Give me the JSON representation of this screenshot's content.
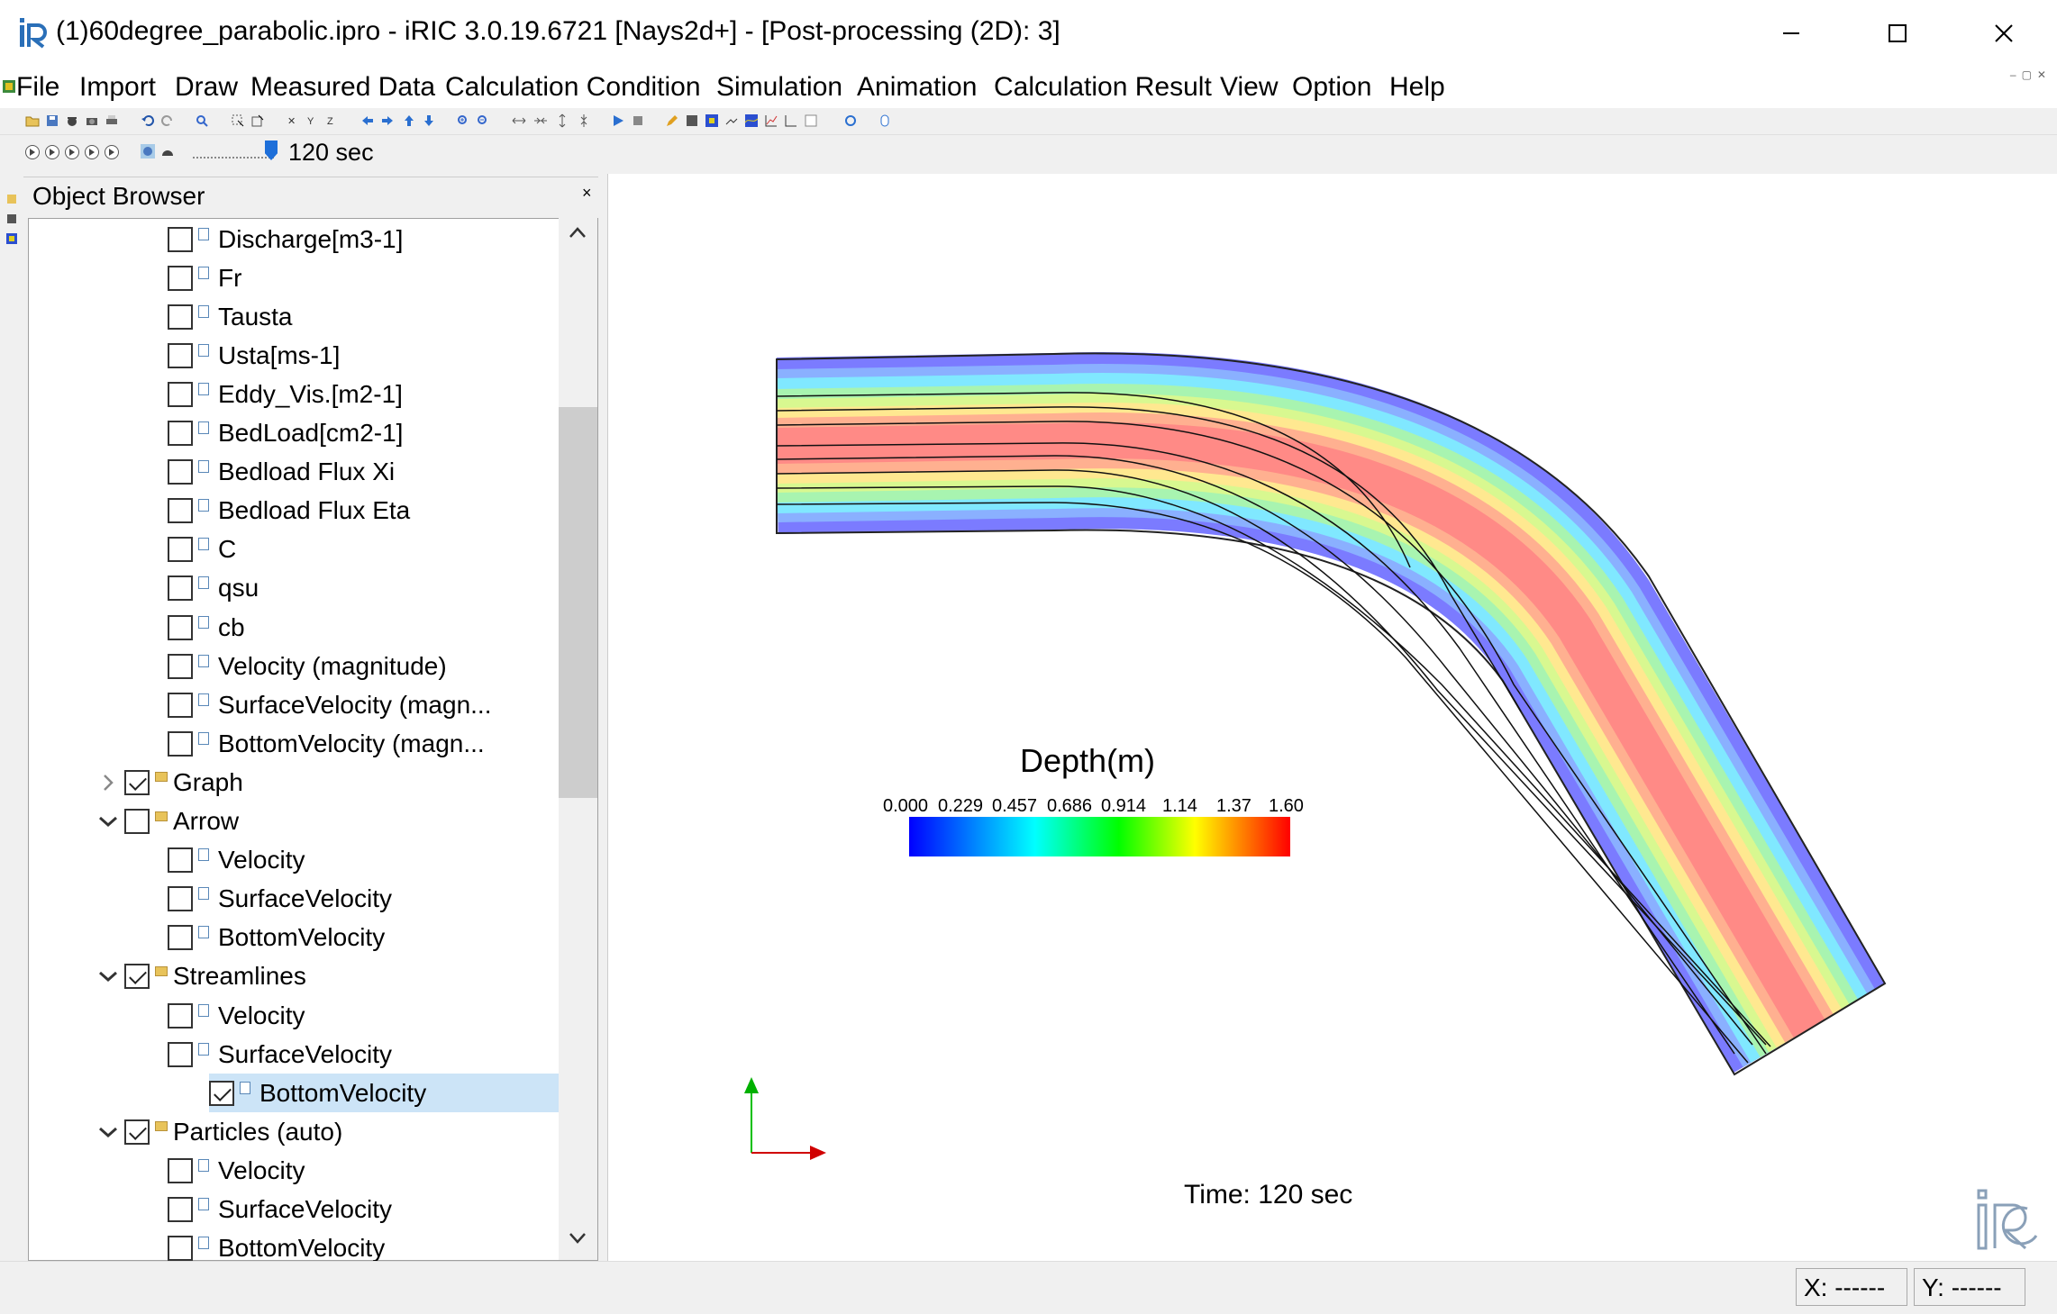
{
  "window": {
    "title": "(1)60degree_parabolic.ipro - iRIC 3.0.19.6721 [Nays2d+] - [Post-processing (2D): 3]",
    "controls": [
      "minimize",
      "maximize",
      "close"
    ]
  },
  "menu": [
    "File",
    "Import",
    "Draw",
    "Measured Data",
    "Calculation Condition",
    "Simulation",
    "Animation",
    "Calculation Result",
    "View",
    "Option",
    "Help"
  ],
  "toolbar": {
    "time_label": "120 sec",
    "slider_fraction": 1.0
  },
  "object_browser": {
    "title": "Object Browser",
    "close_label": "×",
    "items": [
      {
        "label": "Discharge[m3-1]",
        "level": 2,
        "type": "file",
        "checked": false
      },
      {
        "label": "Fr",
        "level": 2,
        "type": "file",
        "checked": false
      },
      {
        "label": "Tausta",
        "level": 2,
        "type": "file",
        "checked": false
      },
      {
        "label": "Usta[ms-1]",
        "level": 2,
        "type": "file",
        "checked": false
      },
      {
        "label": "Eddy_Vis.[m2-1]",
        "level": 2,
        "type": "file",
        "checked": false
      },
      {
        "label": "BedLoad[cm2-1]",
        "level": 2,
        "type": "file",
        "checked": false
      },
      {
        "label": "Bedload Flux Xi",
        "level": 2,
        "type": "file",
        "checked": false
      },
      {
        "label": "Bedload Flux Eta",
        "level": 2,
        "type": "file",
        "checked": false
      },
      {
        "label": "C",
        "level": 2,
        "type": "file",
        "checked": false
      },
      {
        "label": "qsu",
        "level": 2,
        "type": "file",
        "checked": false
      },
      {
        "label": "cb",
        "level": 2,
        "type": "file",
        "checked": false
      },
      {
        "label": "Velocity (magnitude)",
        "level": 2,
        "type": "file",
        "checked": false
      },
      {
        "label": "SurfaceVelocity (magn...",
        "level": 2,
        "type": "file",
        "checked": false
      },
      {
        "label": "BottomVelocity (magn...",
        "level": 2,
        "type": "file",
        "checked": false
      },
      {
        "label": "Graph",
        "level": 1,
        "type": "folder",
        "checked": true,
        "expander": "collapsed"
      },
      {
        "label": "Arrow",
        "level": 1,
        "type": "folder",
        "checked": false,
        "expander": "expanded"
      },
      {
        "label": "Velocity",
        "level": 2,
        "type": "file",
        "checked": false
      },
      {
        "label": "SurfaceVelocity",
        "level": 2,
        "type": "file",
        "checked": false
      },
      {
        "label": "BottomVelocity",
        "level": 2,
        "type": "file",
        "checked": false
      },
      {
        "label": "Streamlines",
        "level": 1,
        "type": "folder",
        "checked": true,
        "expander": "expanded"
      },
      {
        "label": "Velocity",
        "level": 2,
        "type": "file",
        "checked": false
      },
      {
        "label": "SurfaceVelocity",
        "level": 2,
        "type": "file",
        "checked": false
      },
      {
        "label": "BottomVelocity",
        "level": 2,
        "type": "file",
        "checked": true,
        "selected": true
      },
      {
        "label": "Particles (auto)",
        "level": 1,
        "type": "folder",
        "checked": true,
        "expander": "expanded"
      },
      {
        "label": "Velocity",
        "level": 2,
        "type": "file",
        "checked": false
      },
      {
        "label": "SurfaceVelocity",
        "level": 2,
        "type": "file",
        "checked": false
      },
      {
        "label": "BottomVelocity",
        "level": 2,
        "type": "file",
        "checked": false
      }
    ]
  },
  "legend": {
    "title": "Depth(m)",
    "ticks": [
      "0.000",
      "0.229",
      "0.457",
      "0.686",
      "0.914",
      "1.14",
      "1.37",
      "1.60"
    ],
    "colors": [
      "#0000ff",
      "#00ffff",
      "#00ff00",
      "#ffff00",
      "#ff0000"
    ]
  },
  "view": {
    "time_text": "Time: 120 sec",
    "channel_edge_color": "#7b7bff",
    "channel_center_color": "#ff8080"
  },
  "status": {
    "x": "X: ------",
    "y": "Y: ------"
  }
}
